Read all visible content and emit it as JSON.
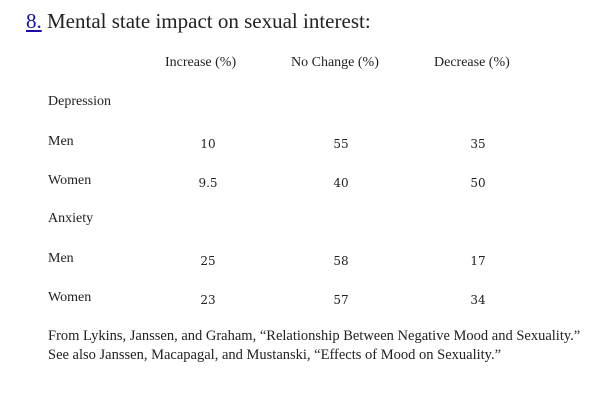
{
  "heading": {
    "footnote_link": "8.",
    "title": "Mental state impact on sexual interest:"
  },
  "columns": [
    "Increase (%)",
    "No Change (%)",
    "Decrease (%)"
  ],
  "groups": [
    {
      "name": "Depression",
      "rows": [
        {
          "label": "Men",
          "values": [
            "10",
            "55",
            "35"
          ]
        },
        {
          "label": "Women",
          "values": [
            "9.5",
            "40",
            "50"
          ]
        }
      ]
    },
    {
      "name": "Anxiety",
      "rows": [
        {
          "label": "Men",
          "values": [
            "25",
            "58",
            "17"
          ]
        },
        {
          "label": "Women",
          "values": [
            "23",
            "57",
            "34"
          ]
        }
      ]
    }
  ],
  "source_note": "From Lykins, Janssen, and Graham, “Relationship Between Negative Mood and Sexuality.” See also Janssen, Macapagal, and Mustanski, “Effects of Mood on Sexuality.”"
}
